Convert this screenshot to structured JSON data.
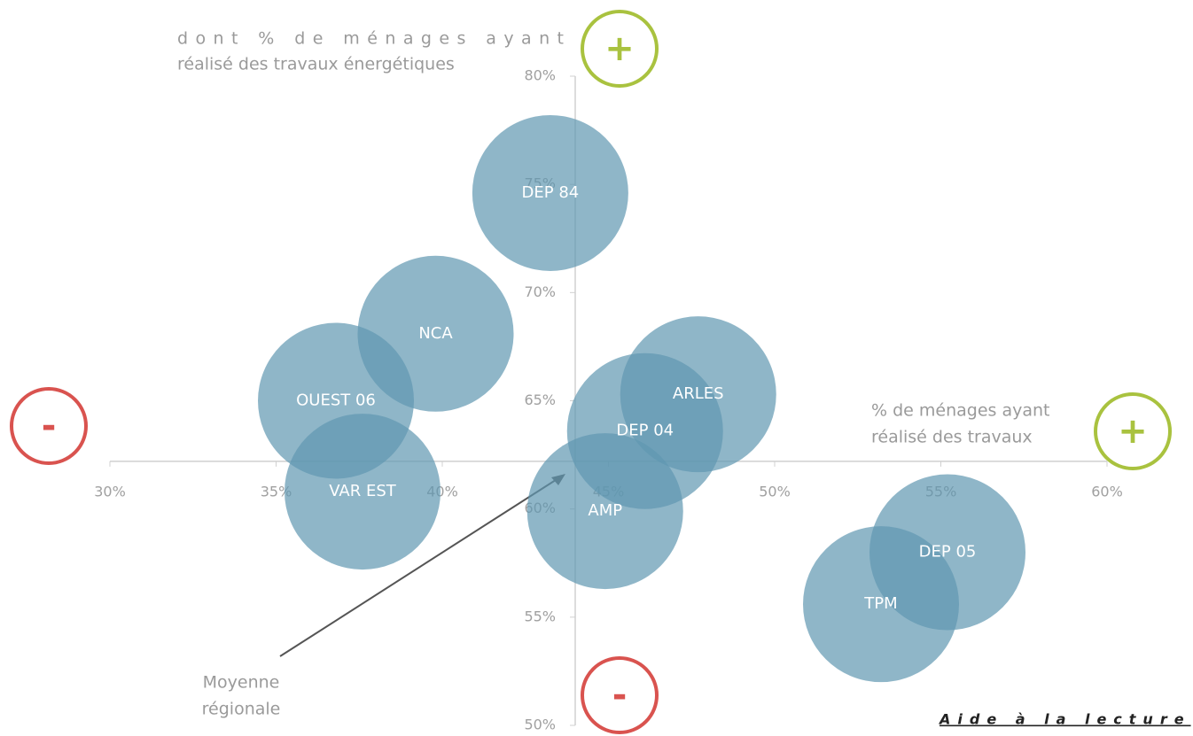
{
  "chart_data": {
    "type": "bubble",
    "y_label": "dont % de ménages ayant réalisé des travaux énergétiques",
    "x_label": "% de ménages ayant réalisé des travaux",
    "annotation": "Moyenne régionale",
    "footnote": "Aide à la lecture",
    "plus_sign": "+",
    "minus_sign": "-",
    "plus_color": "#a9c23f",
    "minus_color": "#d9534f",
    "color": "#5f97b0",
    "xlim": [
      30,
      60
    ],
    "ylim": [
      50,
      80
    ],
    "xaxis_at_y": 62.2,
    "yaxis_at_x": 44,
    "xticks": [
      {
        "value": 30,
        "label": "30%"
      },
      {
        "value": 35,
        "label": "35%"
      },
      {
        "value": 40,
        "label": "40%"
      },
      {
        "value": 45,
        "label": "45%"
      },
      {
        "value": 50,
        "label": "50%"
      },
      {
        "value": 55,
        "label": "55%"
      },
      {
        "value": 60,
        "label": "60%"
      }
    ],
    "yticks": [
      {
        "value": 50,
        "label": "50%"
      },
      {
        "value": 55,
        "label": "55%"
      },
      {
        "value": 60,
        "label": "60%"
      },
      {
        "value": 65,
        "label": "65%"
      },
      {
        "value": 70,
        "label": "70%"
      },
      {
        "value": 75,
        "label": "75%"
      },
      {
        "value": 80,
        "label": "80%"
      }
    ],
    "categories": [
      "DEP 84",
      "NCA",
      "OUEST 06",
      "VAR EST",
      "ARLES",
      "DEP 04",
      "AMP",
      "DEP 05",
      "TPM"
    ],
    "x": [
      43.25,
      39.8,
      36.8,
      37.6,
      47.7,
      46.1,
      44.9,
      55.2,
      53.2
    ],
    "values": [
      74.6,
      68.1,
      65.0,
      60.8,
      65.3,
      63.6,
      59.9,
      58.0,
      55.6
    ]
  }
}
